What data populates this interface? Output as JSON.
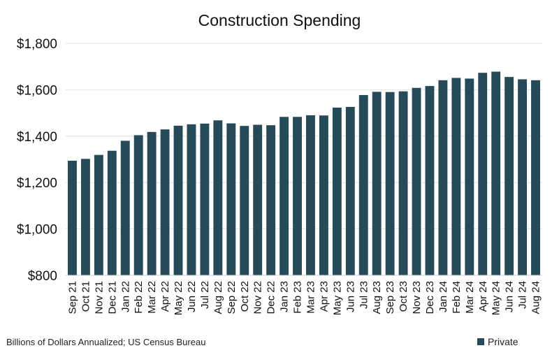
{
  "chart_data": {
    "type": "bar",
    "title": "Construction Spending",
    "xlabel": "",
    "ylabel": "",
    "ylim": [
      800,
      1800
    ],
    "yticks": [
      800,
      1000,
      1200,
      1400,
      1600,
      1800
    ],
    "ytick_labels": [
      "$800",
      "$1,000",
      "$1,200",
      "$1,400",
      "$1,600",
      "$1,800"
    ],
    "grid": true,
    "legend_position": "bottom-right",
    "categories": [
      "Sep 21",
      "Oct 21",
      "Nov 21",
      "Dec 21",
      "Jan 22",
      "Feb 22",
      "Mar 22",
      "Apr 22",
      "May 22",
      "Jun 22",
      "Jul 22",
      "Aug 22",
      "Sep 22",
      "Oct 22",
      "Nov 22",
      "Dec 22",
      "Jan 23",
      "Feb 23",
      "Mar 23",
      "Apr 23",
      "May 23",
      "Jun 23",
      "Jul 23",
      "Aug 23",
      "Sep 23",
      "Oct 23",
      "Nov 23",
      "Dec 23",
      "Jan 24",
      "Feb 24",
      "Mar 24",
      "Apr 24",
      "May 24",
      "Jun 24",
      "Jul 24",
      "Aug 24"
    ],
    "series": [
      {
        "name": "Private",
        "color": "#264a58",
        "values": [
          1294,
          1302,
          1319,
          1337,
          1380,
          1404,
          1418,
          1429,
          1445,
          1451,
          1454,
          1468,
          1455,
          1444,
          1449,
          1447,
          1483,
          1483,
          1490,
          1489,
          1523,
          1526,
          1577,
          1591,
          1590,
          1593,
          1608,
          1616,
          1641,
          1651,
          1648,
          1673,
          1678,
          1655,
          1645,
          1641
        ]
      }
    ],
    "footnote": "Billions of Dollars Annualized; US Census Bureau"
  }
}
